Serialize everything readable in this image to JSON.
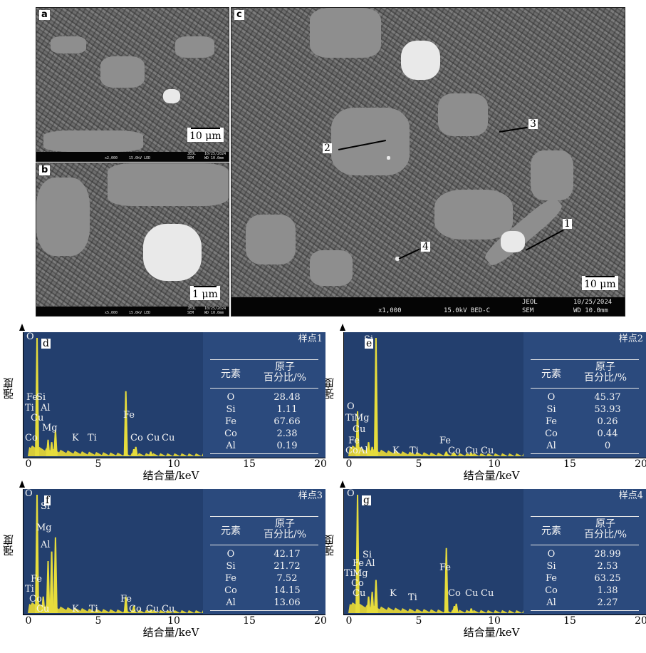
{
  "sem": {
    "a": {
      "letter": "a",
      "scale": "10 μm",
      "info": [
        "x2,000",
        "15.0kV LED",
        "JEOL",
        "SEM",
        "10/25/2024",
        "WD 10.0mm"
      ]
    },
    "b": {
      "letter": "b",
      "scale": "1 μm",
      "info": [
        "x5,000",
        "15.0kV LED",
        "JEOL",
        "SEM",
        "10/25/2024",
        "WD 10.0mm"
      ]
    },
    "c": {
      "letter": "c",
      "scale": "10 μm",
      "info": [
        "x1,000",
        "15.0kV BED-C",
        "JEOL",
        "SEM",
        "10/25/2024",
        "WD 10.0mm"
      ],
      "markers": [
        "1",
        "2",
        "3",
        "4"
      ]
    }
  },
  "eds_common": {
    "ylabel": "强度",
    "xlabel": "结合量/keV",
    "xticks": [
      "0",
      "5",
      "10",
      "15",
      "20"
    ],
    "col_element": "元素",
    "col_atomic": [
      "原子",
      "百分比/%"
    ]
  },
  "eds": [
    {
      "letter": "d",
      "sample": "样点1",
      "rows": [
        [
          "O",
          "28.48"
        ],
        [
          "Si",
          "1.11"
        ],
        [
          "Fe",
          "67.66"
        ],
        [
          "Co",
          "2.38"
        ],
        [
          "Al",
          "0.19"
        ]
      ],
      "peak_labels": [
        "O",
        "Fe",
        "Si",
        "Ti",
        "Al",
        "Cu",
        "Mg",
        "Co",
        "K",
        "Ti",
        "Fe",
        "Co",
        "Cu",
        "Cu"
      ]
    },
    {
      "letter": "e",
      "sample": "样点2",
      "rows": [
        [
          "O",
          "45.37"
        ],
        [
          "Si",
          "53.93"
        ],
        [
          "Fe",
          "0.26"
        ],
        [
          "Co",
          "0.44"
        ],
        [
          "Al",
          "0"
        ]
      ],
      "peak_labels": [
        "Si",
        "O",
        "Ti",
        "Mg",
        "Cu",
        "Fe",
        "Co",
        "Al",
        "K",
        "Ti",
        "Fe",
        "Co",
        "Cu",
        "Cu"
      ]
    },
    {
      "letter": "f",
      "sample": "样点3",
      "rows": [
        [
          "O",
          "42.17"
        ],
        [
          "Si",
          "21.72"
        ],
        [
          "Fe",
          "7.52"
        ],
        [
          "Co",
          "14.15"
        ],
        [
          "Al",
          "13.06"
        ]
      ],
      "peak_labels": [
        "O",
        "Si",
        "Mg",
        "Al",
        "Fe",
        "Ti",
        "Co",
        "Cu",
        "K",
        "Ti",
        "Fe",
        "Co",
        "Cu",
        "Cu"
      ]
    },
    {
      "letter": "g",
      "sample": "样点4",
      "rows": [
        [
          "O",
          "28.99"
        ],
        [
          "Si",
          "2.53"
        ],
        [
          "Fe",
          "63.25"
        ],
        [
          "Co",
          "1.38"
        ],
        [
          "Al",
          "2.27"
        ]
      ],
      "peak_labels": [
        "O",
        "Si",
        "Fe",
        "Al",
        "Ti",
        "Mg",
        "Co",
        "Cu",
        "K",
        "Ti",
        "Fe",
        "Co",
        "Cu",
        "Cu"
      ]
    }
  ],
  "chart_data": [
    {
      "type": "bar",
      "title": "样点1",
      "xlabel": "结合量/keV",
      "ylabel": "强度",
      "xlim": [
        0,
        20
      ],
      "x": [
        0.52,
        1.25,
        1.49,
        1.74,
        6.4,
        6.93,
        7.06,
        8.05
      ],
      "values": [
        100,
        14,
        12,
        22,
        55,
        6,
        8,
        4
      ]
    },
    {
      "type": "bar",
      "title": "样点2",
      "xlabel": "结合量/keV",
      "ylabel": "强度",
      "xlim": [
        0,
        20
      ],
      "x": [
        0.52,
        1.25,
        1.49,
        1.74,
        6.4,
        6.93,
        8.05
      ],
      "values": [
        38,
        12,
        8,
        100,
        4,
        3,
        3
      ]
    },
    {
      "type": "bar",
      "title": "样点3",
      "xlabel": "结合量/keV",
      "ylabel": "强度",
      "xlim": [
        0,
        20
      ],
      "x": [
        0.52,
        0.93,
        1.25,
        1.49,
        1.74,
        6.4,
        6.93,
        8.05
      ],
      "values": [
        100,
        14,
        44,
        52,
        64,
        14,
        6,
        3
      ]
    },
    {
      "type": "bar",
      "title": "样点4",
      "xlabel": "结合量/keV",
      "ylabel": "强度",
      "xlim": [
        0,
        20
      ],
      "x": [
        0.52,
        1.25,
        1.49,
        1.74,
        6.4,
        6.93,
        7.06,
        8.05
      ],
      "values": [
        100,
        14,
        18,
        28,
        55,
        6,
        8,
        4
      ]
    }
  ]
}
